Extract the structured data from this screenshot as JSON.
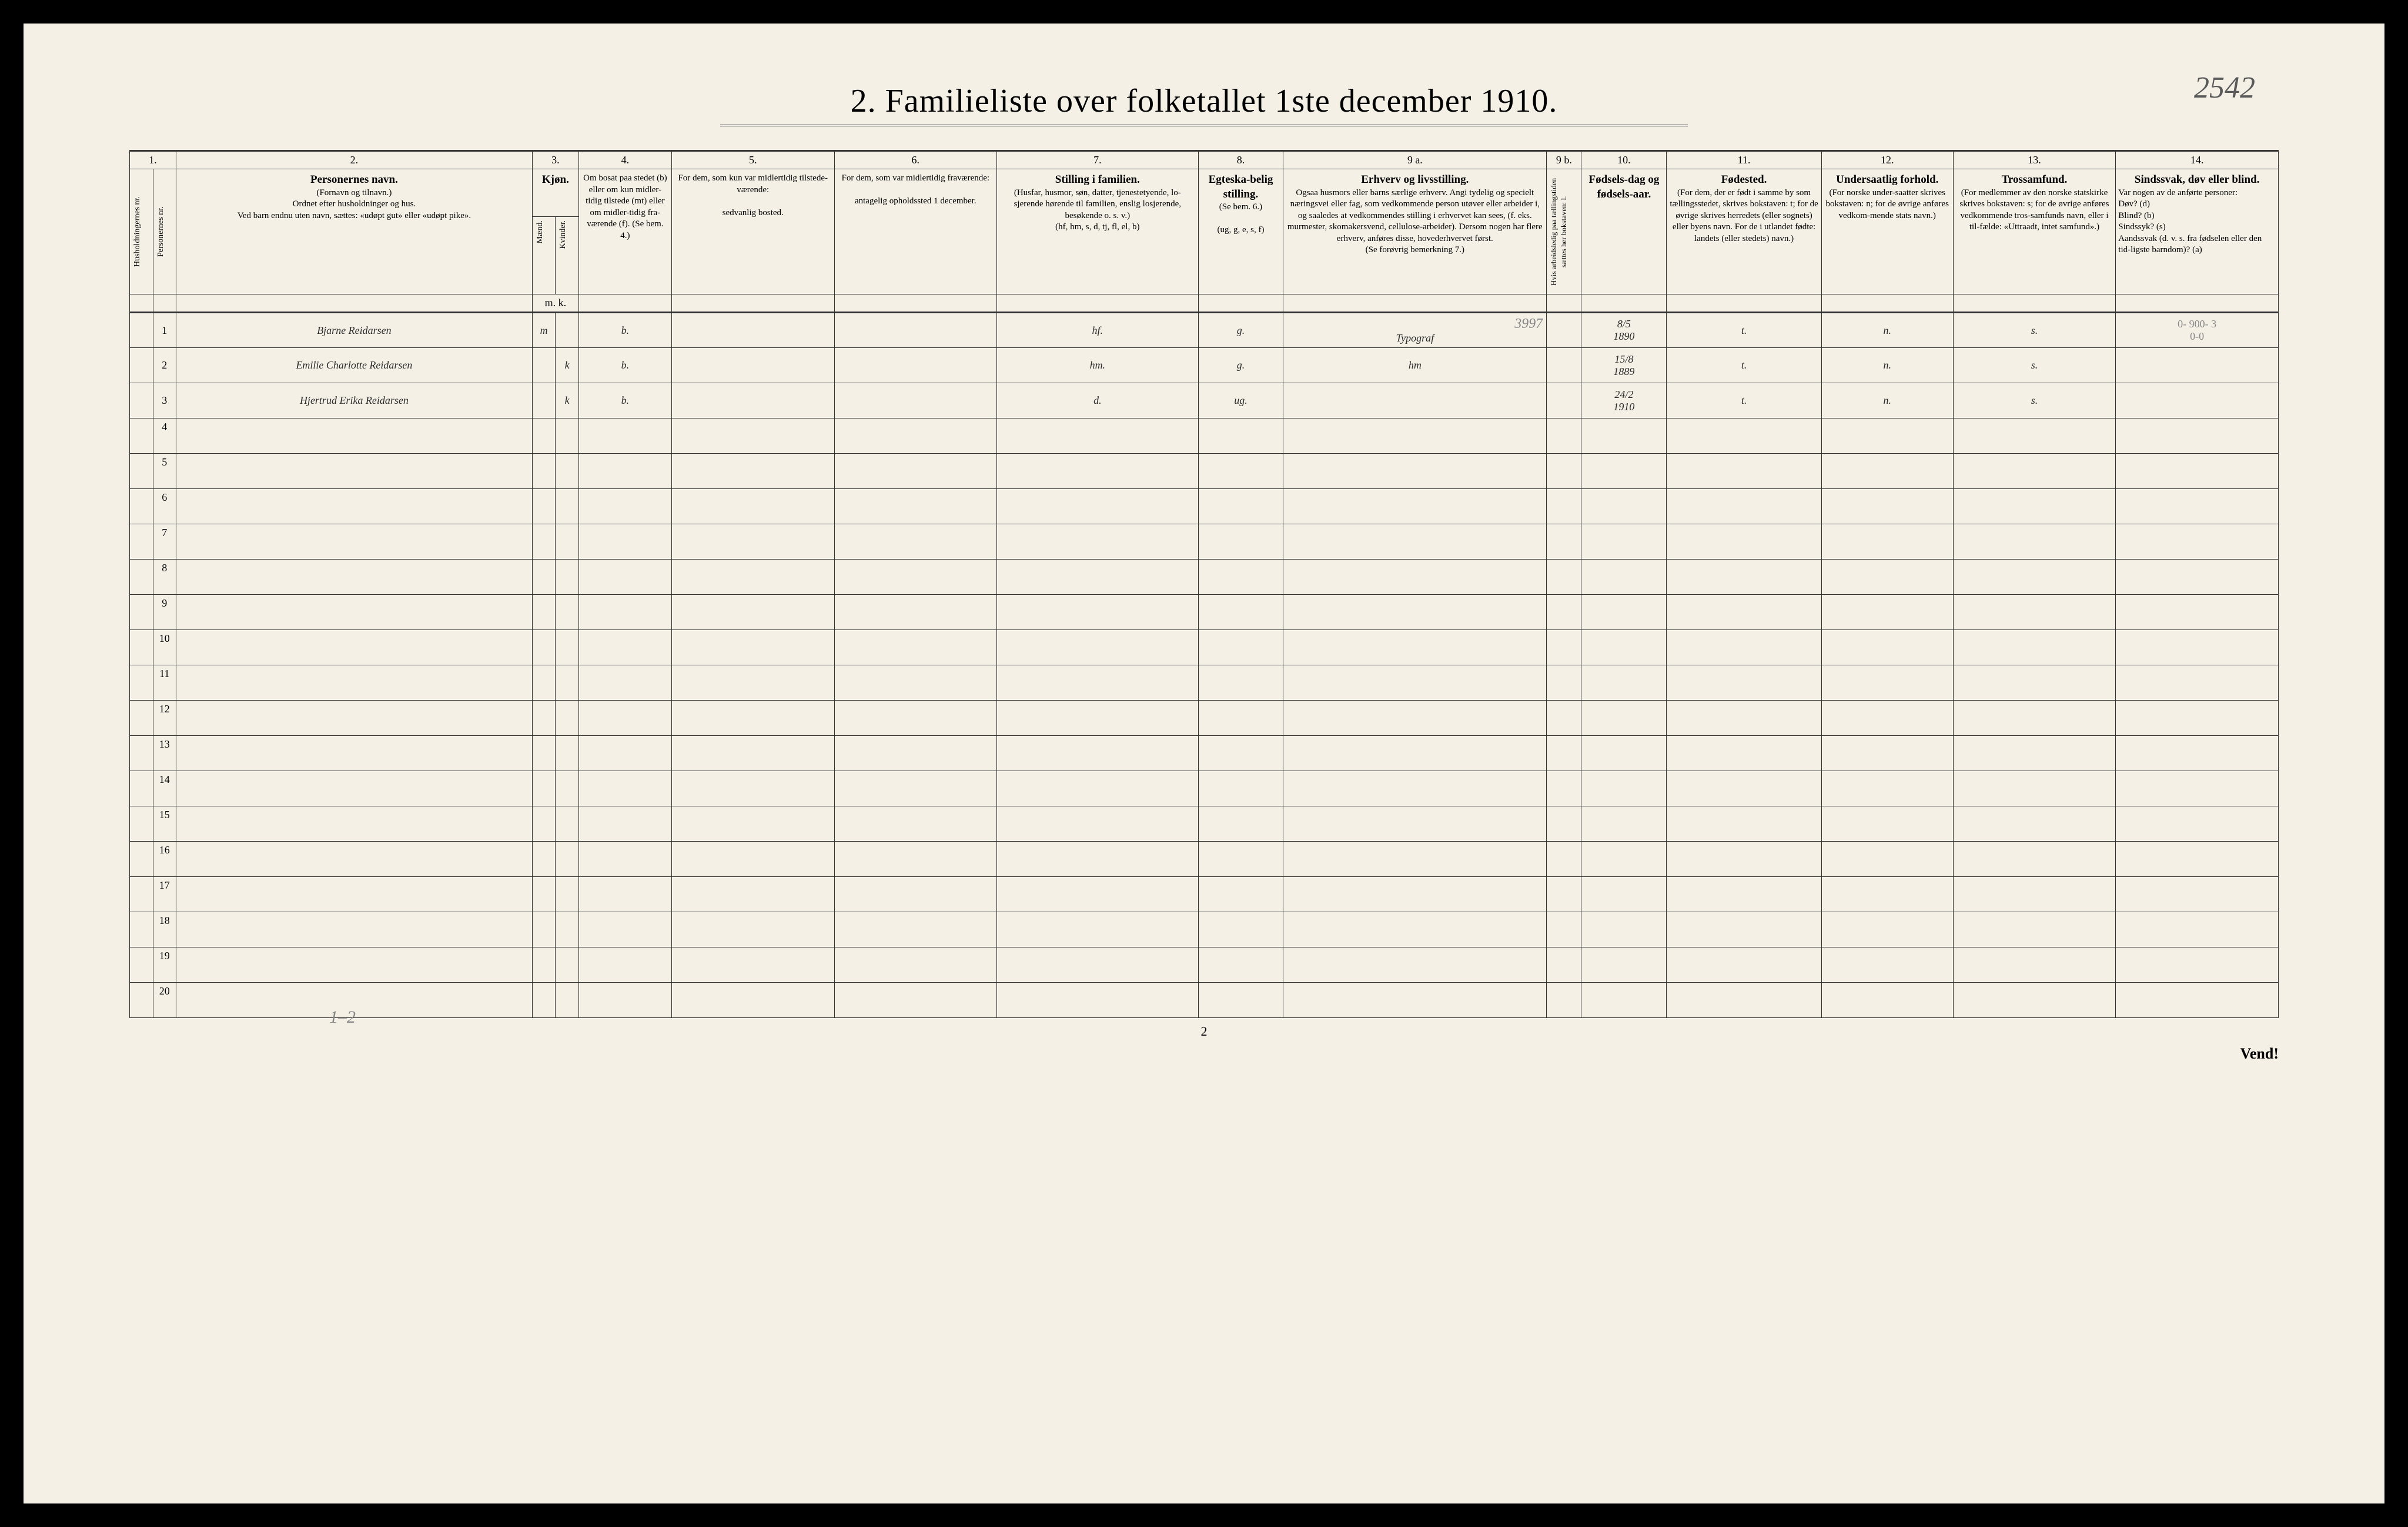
{
  "title": "2.  Familieliste over folketallet 1ste december 1910.",
  "handwritten_topright": "2542",
  "page_number_bottom": "2",
  "vend_label": "Vend!",
  "pencil_bottom_left": "1–2",
  "column_numbers": [
    "1.",
    "2.",
    "3.",
    "4.",
    "5.",
    "6.",
    "7.",
    "8.",
    "9 a.",
    "9 b.",
    "10.",
    "11.",
    "12.",
    "13.",
    "14."
  ],
  "headers": {
    "col1a": "Husholdningernes nr.",
    "col1b": "Personernes nr.",
    "col2_bold": "Personernes navn.",
    "col2_sub": "(Fornavn og tilnavn.)\nOrdnet efter husholdninger og hus.\nVed barn endnu uten navn, sættes: «udøpt gut» eller «udøpt pike».",
    "col3_bold": "Kjøn.",
    "col3_m": "Mænd.",
    "col3_k": "Kvinder.",
    "col3_mk": "m.  k.",
    "col4_text": "Om bosat paa stedet (b) eller om kun midler-tidig tilstede (mt) eller om midler-tidig fra-værende (f). (Se bem. 4.)",
    "col5_text": "For dem, som kun var midlertidig tilstede-værende:\n\nsedvanlig bosted.",
    "col6_text": "For dem, som var midlertidig fraværende:\n\nantagelig opholdssted 1 december.",
    "col7_bold": "Stilling i familien.",
    "col7_sub": "(Husfar, husmor, søn, datter, tjenestetyende, lo-sjerende hørende til familien, enslig losjerende, besøkende o. s. v.)\n(hf, hm, s, d, tj, fl, el, b)",
    "col8_bold": "Egteska-belig stilling.",
    "col8_sub": "(Se bem. 6.)\n\n(ug, g, e, s, f)",
    "col9a_bold": "Erhverv og livsstilling.",
    "col9a_sub": "Ogsaa husmors eller barns særlige erhverv. Angi tydelig og specielt næringsvei eller fag, som vedkommende person utøver eller arbeider i, og saaledes at vedkommendes stilling i erhvervet kan sees, (f. eks. murmester, skomakersvend, cellulose-arbeider). Dersom nogen har flere erhverv, anføres disse, hovederhvervet først.\n(Se forøvrig bemerkning 7.)",
    "col9b_text": "Hvis arbeidsledig paa tællingstiden sættes her bokstaven: l.",
    "col10_bold": "Fødsels-dag og fødsels-aar.",
    "col11_bold": "Fødested.",
    "col11_sub": "(For dem, der er født i samme by som tællingsstedet, skrives bokstaven: t; for de øvrige skrives herredets (eller sognets) eller byens navn. For de i utlandet fødte: landets (eller stedets) navn.)",
    "col12_bold": "Undersaatlig forhold.",
    "col12_sub": "(For norske under-saatter skrives bokstaven: n; for de øvrige anføres vedkom-mende stats navn.)",
    "col13_bold": "Trossamfund.",
    "col13_sub": "(For medlemmer av den norske statskirke skrives bokstaven: s; for de øvrige anføres vedkommende tros-samfunds navn, eller i til-fælde: «Uttraadt, intet samfund».)",
    "col14_bold": "Sindssvak, døv eller blind.",
    "col14_sub": "Var nogen av de anførte personer:\nDøv?        (d)\nBlind?      (b)\nSindssyk?  (s)\nAandssvak (d. v. s. fra fødselen eller den tid-ligste barndom)? (a)"
  },
  "rows": [
    {
      "num": "1",
      "name": "Bjarne Reidarsen",
      "m": "m",
      "k": "",
      "bosat": "b.",
      "stilling": "hf.",
      "egte": "g.",
      "erhverv": "Typograf",
      "erhverv_pencil": "3997",
      "fdato": "8/5\n1890",
      "fsted": "t.",
      "under": "n.",
      "tros": "s.",
      "col14_note": "0- 900- 3\n0-0"
    },
    {
      "num": "2",
      "name": "Emilie Charlotte Reidarsen",
      "m": "",
      "k": "k",
      "bosat": "b.",
      "stilling": "hm.",
      "egte": "g.",
      "erhverv": "hm",
      "fdato": "15/8\n1889",
      "fsted": "t.",
      "under": "n.",
      "tros": "s."
    },
    {
      "num": "3",
      "name": "Hjertrud Erika Reidarsen",
      "m": "",
      "k": "k",
      "bosat": "b.",
      "stilling": "d.",
      "egte": "ug.",
      "erhverv": "",
      "fdato": "24/2\n1910",
      "fsted": "t.",
      "under": "n.",
      "tros": "s."
    }
  ],
  "empty_row_nums": [
    "4",
    "5",
    "6",
    "7",
    "8",
    "9",
    "10",
    "11",
    "12",
    "13",
    "14",
    "15",
    "16",
    "17",
    "18",
    "19",
    "20"
  ]
}
